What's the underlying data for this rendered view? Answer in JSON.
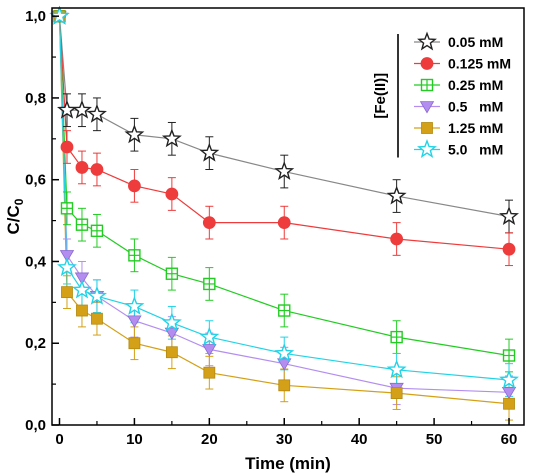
{
  "chart_data": {
    "type": "line",
    "xlabel": "Time (min)",
    "ylabel_main": "C/C",
    "ylabel_sub": "0",
    "xlim": [
      -1,
      62
    ],
    "ylim": [
      0,
      1.02
    ],
    "x_ticks": [
      0,
      10,
      20,
      30,
      40,
      50,
      60
    ],
    "x_tick_labels": [
      "0",
      "10",
      "20",
      "30",
      "40",
      "50",
      "60"
    ],
    "y_ticks": [
      0,
      0.2,
      0.4,
      0.6,
      0.8,
      1.0
    ],
    "y_tick_labels": [
      "0,0",
      "0,2",
      "0,4",
      "0,6",
      "0,8",
      "1,0"
    ],
    "legend_title": "[Fe(II)]",
    "legend_position": "top-right",
    "grid": false,
    "x": [
      0,
      1,
      3,
      5,
      10,
      15,
      20,
      30,
      45,
      60
    ],
    "series": [
      {
        "name": "0.05 mM",
        "marker": "star-open",
        "color": "#222222",
        "line_color": "#888888",
        "values": [
          1.0,
          0.77,
          0.77,
          0.76,
          0.71,
          0.7,
          0.665,
          0.62,
          0.56,
          0.51
        ],
        "errors": [
          0.01,
          0.04,
          0.04,
          0.04,
          0.04,
          0.04,
          0.04,
          0.04,
          0.04,
          0.04
        ]
      },
      {
        "name": "0.125 mM",
        "marker": "circle-filled",
        "color": "#ee3b3b",
        "line_color": "#ee3b3b",
        "values": [
          1.0,
          0.68,
          0.63,
          0.625,
          0.585,
          0.565,
          0.495,
          0.495,
          0.455,
          0.43
        ],
        "errors": [
          0.01,
          0.04,
          0.04,
          0.04,
          0.04,
          0.04,
          0.04,
          0.04,
          0.04,
          0.04
        ]
      },
      {
        "name": "0.25 mM",
        "marker": "square-open",
        "color": "#22cc22",
        "line_color": "#22cc22",
        "values": [
          1.0,
          0.53,
          0.49,
          0.475,
          0.415,
          0.37,
          0.345,
          0.28,
          0.215,
          0.17
        ],
        "errors": [
          0.01,
          0.04,
          0.04,
          0.04,
          0.04,
          0.04,
          0.04,
          0.04,
          0.04,
          0.04
        ]
      },
      {
        "name": "0.5   mM",
        "marker": "triangle-down",
        "color": "#b38ef0",
        "line_color": "#b38ef0",
        "values": [
          1.0,
          0.415,
          0.36,
          0.315,
          0.255,
          0.225,
          0.185,
          0.15,
          0.09,
          0.08
        ],
        "errors": [
          0.01,
          0.04,
          0.04,
          0.04,
          0.04,
          0.04,
          0.04,
          0.04,
          0.04,
          0.04
        ]
      },
      {
        "name": "1.25 mM",
        "marker": "square-filled",
        "color": "#d4a017",
        "line_color": "#d4a017",
        "values": [
          1.0,
          0.325,
          0.28,
          0.26,
          0.2,
          0.178,
          0.128,
          0.097,
          0.078,
          0.052
        ],
        "errors": [
          0.01,
          0.04,
          0.04,
          0.04,
          0.04,
          0.04,
          0.04,
          0.04,
          0.04,
          0.04
        ]
      },
      {
        "name": "5.0   mM",
        "marker": "star-open",
        "color": "#22d3e6",
        "line_color": "#22d3e6",
        "values": [
          1.0,
          0.385,
          0.33,
          0.315,
          0.29,
          0.25,
          0.215,
          0.175,
          0.135,
          0.11
        ],
        "errors": [
          0.01,
          0.04,
          0.04,
          0.04,
          0.04,
          0.04,
          0.04,
          0.04,
          0.04,
          0.04
        ]
      }
    ]
  }
}
